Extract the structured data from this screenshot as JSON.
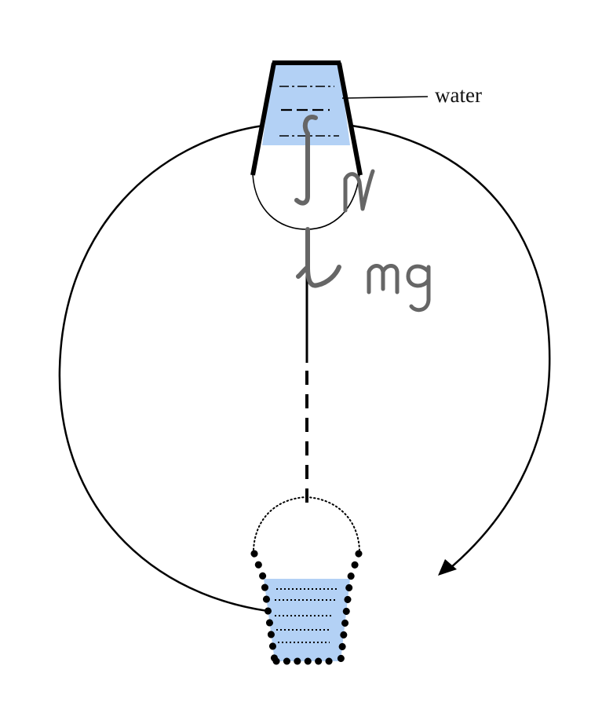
{
  "labels": {
    "water": "water",
    "hand_normal": "N",
    "hand_weight": "mg"
  },
  "colors": {
    "water_fill": "#b3d1f5",
    "line": "#000000",
    "handwriting": "#666666"
  },
  "icons": {
    "motion_arrow": "arrowhead-icon"
  }
}
